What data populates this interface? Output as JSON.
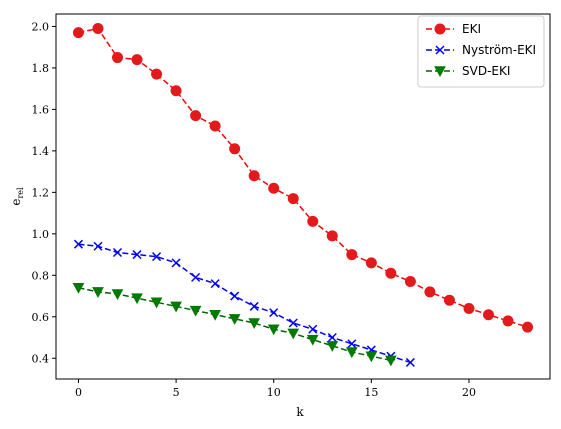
{
  "chart_data": {
    "type": "line",
    "title": "",
    "xlabel": "k",
    "ylabel": "e",
    "ylabel_subscript": "rel",
    "xlim": [
      -1.15,
      24.15
    ],
    "ylim": [
      0.3,
      2.06
    ],
    "x_ticks": [
      0,
      5,
      10,
      15,
      20
    ],
    "x_tick_labels": [
      "0",
      "5",
      "10",
      "15",
      "20"
    ],
    "y_ticks": [
      0.4,
      0.6,
      0.8,
      1.0,
      1.2,
      1.4,
      1.6,
      1.8,
      2.0
    ],
    "y_tick_labels": [
      "0.4",
      "0.6",
      "0.8",
      "1.0",
      "1.2",
      "1.4",
      "1.6",
      "1.8",
      "2.0"
    ],
    "grid": false,
    "legend_position": "top-right",
    "series": [
      {
        "name": "EKI",
        "color": "#ff0000",
        "marker": "circle",
        "marker_color": "#e31a1c",
        "line_style": "dashed",
        "x": [
          0,
          1,
          2,
          3,
          4,
          5,
          6,
          7,
          8,
          9,
          10,
          11,
          12,
          13,
          14,
          15,
          16,
          17,
          18,
          19,
          20,
          21,
          22,
          23
        ],
        "values": [
          1.97,
          1.99,
          1.85,
          1.84,
          1.77,
          1.69,
          1.57,
          1.52,
          1.41,
          1.28,
          1.22,
          1.17,
          1.06,
          0.99,
          0.9,
          0.86,
          0.81,
          0.77,
          0.72,
          0.68,
          0.64,
          0.61,
          0.58,
          0.55
        ]
      },
      {
        "name": "Nyström-EKI",
        "color": "#0000ff",
        "marker": "x",
        "marker_color": "#0000ff",
        "line_style": "dashed",
        "x": [
          0,
          1,
          2,
          3,
          4,
          5,
          6,
          7,
          8,
          9,
          10,
          11,
          12,
          13,
          14,
          15,
          16,
          17
        ],
        "values": [
          0.95,
          0.94,
          0.91,
          0.9,
          0.89,
          0.86,
          0.79,
          0.76,
          0.7,
          0.65,
          0.62,
          0.57,
          0.54,
          0.5,
          0.47,
          0.44,
          0.41,
          0.38
        ]
      },
      {
        "name": "SVD-EKI",
        "color": "#006400",
        "marker": "triangle-down",
        "marker_color": "#007a00",
        "line_style": "dashed",
        "x": [
          0,
          1,
          2,
          3,
          4,
          5,
          6,
          7,
          8,
          9,
          10,
          11,
          12,
          13,
          14,
          15,
          16
        ],
        "values": [
          0.74,
          0.72,
          0.71,
          0.69,
          0.67,
          0.65,
          0.63,
          0.61,
          0.59,
          0.57,
          0.54,
          0.52,
          0.49,
          0.46,
          0.43,
          0.41,
          0.39
        ]
      }
    ]
  }
}
